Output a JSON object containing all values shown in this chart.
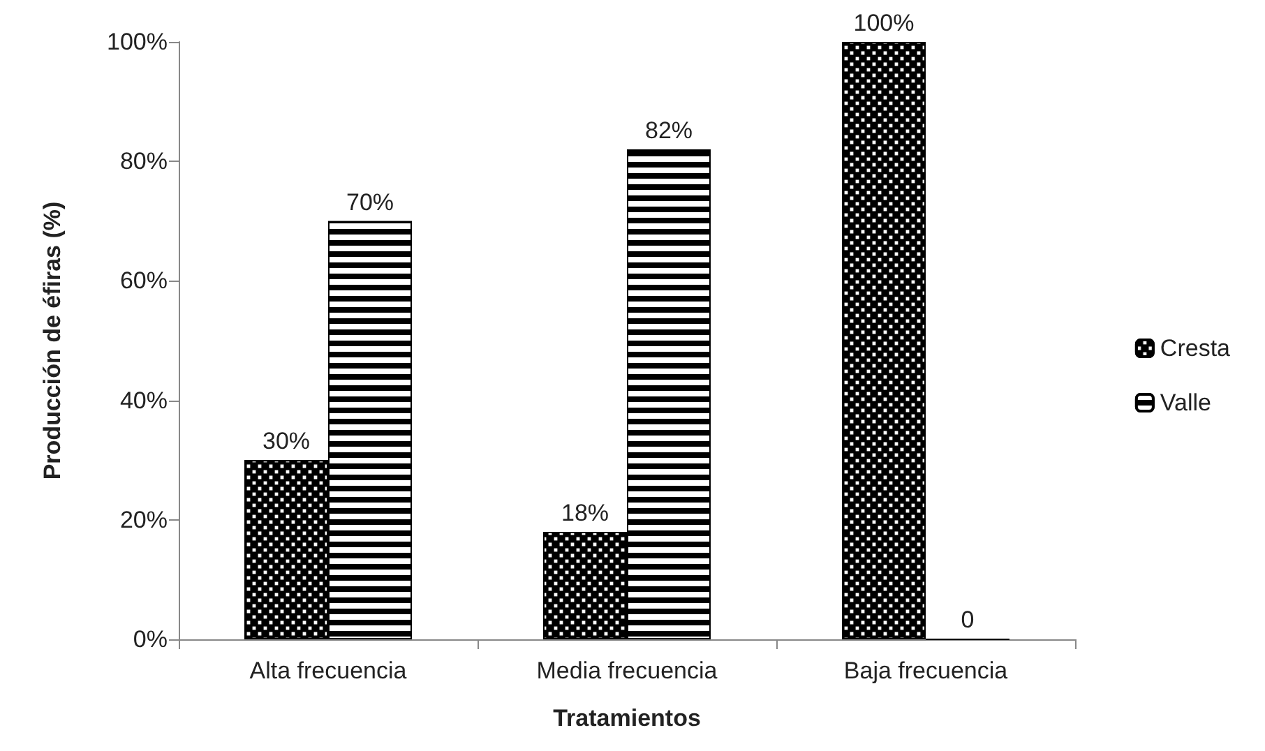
{
  "chart_data": {
    "type": "bar",
    "xlabel": "Tratamientos",
    "ylabel": "Producción de éfiras (%)",
    "categories": [
      "Alta frecuencia",
      "Media frecuencia",
      "Baja frecuencia"
    ],
    "series": [
      {
        "name": "Cresta",
        "color": "#000000",
        "values": [
          30,
          18,
          100
        ],
        "value_labels": [
          "30%",
          "18%",
          "100%"
        ]
      },
      {
        "name": "Valle",
        "color": "#000000",
        "values": [
          70,
          82,
          0
        ],
        "value_labels": [
          "70%",
          "82%",
          "0"
        ]
      }
    ],
    "ylim": [
      0,
      100
    ],
    "yticks": [
      {
        "value": 0,
        "label": "0%"
      },
      {
        "value": 20,
        "label": "20%"
      },
      {
        "value": 40,
        "label": "40%"
      },
      {
        "value": 60,
        "label": "60%"
      },
      {
        "value": 80,
        "label": "80%"
      },
      {
        "value": 100,
        "label": "100%"
      }
    ],
    "grid": false,
    "legend": "right"
  }
}
